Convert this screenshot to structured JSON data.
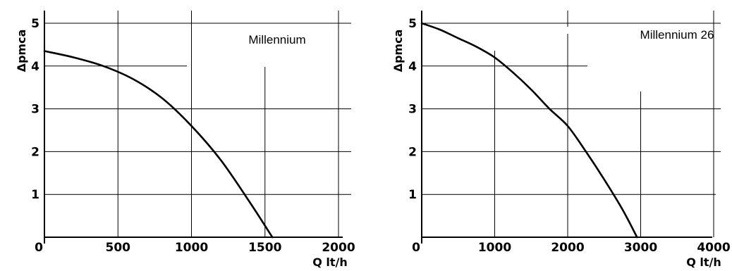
{
  "chart_data": [
    {
      "type": "line",
      "title": "Millennium",
      "xlabel": "Q lt/h",
      "ylabel": "Δpmca",
      "xlim": [
        0,
        2000
      ],
      "ylim": [
        0,
        5
      ],
      "xticks": [
        "0",
        "500",
        "1000",
        "1500",
        "2000"
      ],
      "yticks": [
        "1",
        "2",
        "3",
        "4",
        "5"
      ],
      "grid": true,
      "series": [
        {
          "x": [
            0,
            200,
            400,
            600,
            800,
            1000,
            1200,
            1400,
            1550
          ],
          "y": [
            4.35,
            4.2,
            4.0,
            3.7,
            3.25,
            2.6,
            1.8,
            0.8,
            0
          ]
        }
      ]
    },
    {
      "type": "line",
      "title": "Millennium 26",
      "xlabel": "Q lt/h",
      "ylabel": "Δpmca",
      "xlim": [
        0,
        4000
      ],
      "ylim": [
        0,
        5
      ],
      "xticks": [
        "0",
        "1000",
        "2000",
        "3000",
        "4000"
      ],
      "yticks": [
        "1",
        "2",
        "3",
        "4",
        "5"
      ],
      "grid": true,
      "series": [
        {
          "x": [
            0,
            250,
            500,
            750,
            1000,
            1250,
            1500,
            1750,
            2000,
            2250,
            2500,
            2750,
            2950
          ],
          "y": [
            5.0,
            4.85,
            4.65,
            4.45,
            4.2,
            3.85,
            3.45,
            3.0,
            2.6,
            2.0,
            1.35,
            0.65,
            0
          ]
        }
      ]
    }
  ]
}
